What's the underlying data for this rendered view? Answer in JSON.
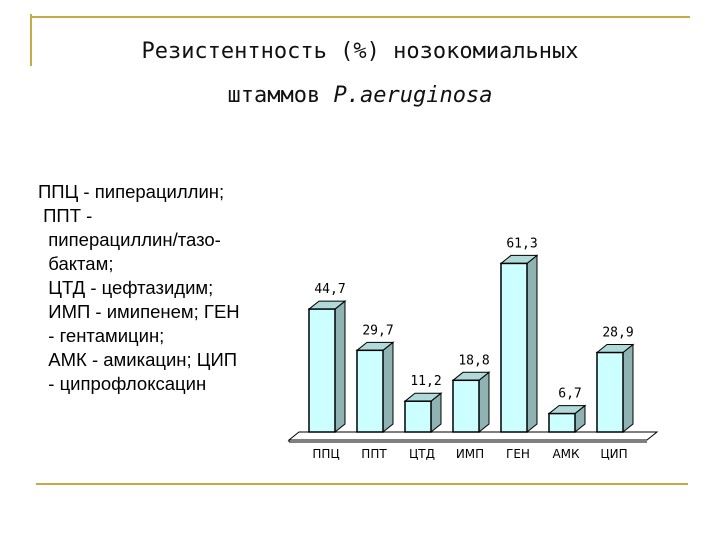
{
  "title": {
    "line1": "Резистентность (%) нозокомиальных",
    "line2_prefix": "штаммов ",
    "line2_italic": "P.aeruginosa"
  },
  "legend_lines": [
    "ППЦ - пиперациллин;",
    " ППТ -",
    "  пиперациллин/тазо-",
    "  бактам;",
    "  ЦТД - цефтазидим;",
    "  ИМП - имипенем; ГЕН",
    "  - гентамицин;",
    "  АМК - амикацин; ЦИП",
    "  - ципрофлоксацин"
  ],
  "colors": {
    "bar_front": "#ccffff",
    "bar_side": "#8fb3b3",
    "bar_top": "#b0d9d9",
    "outline": "#000000",
    "frame": "#c8a84a"
  },
  "chart_data": {
    "type": "bar",
    "categories": [
      "ППЦ",
      "ППТ",
      "ЦТД",
      "ИМП",
      "ГЕН",
      "АМК",
      "ЦИП"
    ],
    "values": [
      44.7,
      29.7,
      11.2,
      18.8,
      61.3,
      6.7,
      28.9
    ],
    "data_labels": [
      "44,7",
      "29,7",
      "11,2",
      "18,8",
      "61,3",
      "6,7",
      "28,9"
    ],
    "ylim": [
      0,
      70
    ],
    "style": "3d",
    "grid": false,
    "legend": "none"
  }
}
